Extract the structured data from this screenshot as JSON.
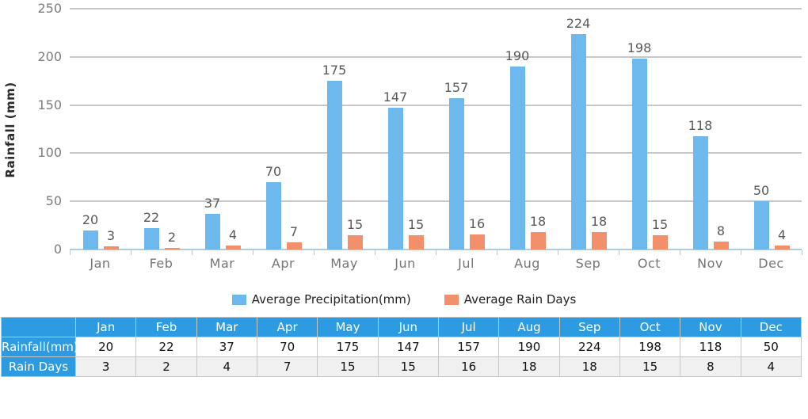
{
  "chart_data": {
    "type": "bar",
    "categories": [
      "Jan",
      "Feb",
      "Mar",
      "Apr",
      "May",
      "Jun",
      "Jul",
      "Aug",
      "Sep",
      "Oct",
      "Nov",
      "Dec"
    ],
    "series": [
      {
        "name": "Average Precipitation(mm)",
        "color": "#6db8ec",
        "values": [
          20,
          22,
          37,
          70,
          175,
          147,
          157,
          190,
          224,
          198,
          118,
          50
        ]
      },
      {
        "name": "Average Rain Days",
        "color": "#f1906a",
        "values": [
          3,
          2,
          4,
          7,
          15,
          15,
          16,
          18,
          18,
          15,
          8,
          4
        ]
      }
    ],
    "title": "",
    "xlabel": "",
    "ylabel": "Rainfall (mm)",
    "ylim": [
      0,
      250
    ],
    "yticks": [
      0,
      50,
      100,
      150,
      200,
      250
    ],
    "grid": true,
    "legend_position": "bottom"
  },
  "table": {
    "corner_label": "",
    "columns": [
      "Jan",
      "Feb",
      "Mar",
      "Apr",
      "May",
      "Jun",
      "Jul",
      "Aug",
      "Sep",
      "Oct",
      "Nov",
      "Dec"
    ],
    "rows": [
      {
        "label": "Rainfall(mm)",
        "values": [
          "20",
          "22",
          "37",
          "70",
          "175",
          "147",
          "157",
          "190",
          "224",
          "198",
          "118",
          "50"
        ]
      },
      {
        "label": "Rain Days",
        "values": [
          "3",
          "2",
          "4",
          "7",
          "15",
          "15",
          "16",
          "18",
          "18",
          "15",
          "8",
          "4"
        ]
      }
    ]
  },
  "colors": {
    "precipitation_bar": "#6db8ec",
    "rain_days_bar": "#f1906a",
    "table_header_bg": "#2d9be2",
    "row_alt_bg": "#f0f0f0",
    "grid_line": "#c8c8c8",
    "axis_line": "#aecbdf"
  }
}
